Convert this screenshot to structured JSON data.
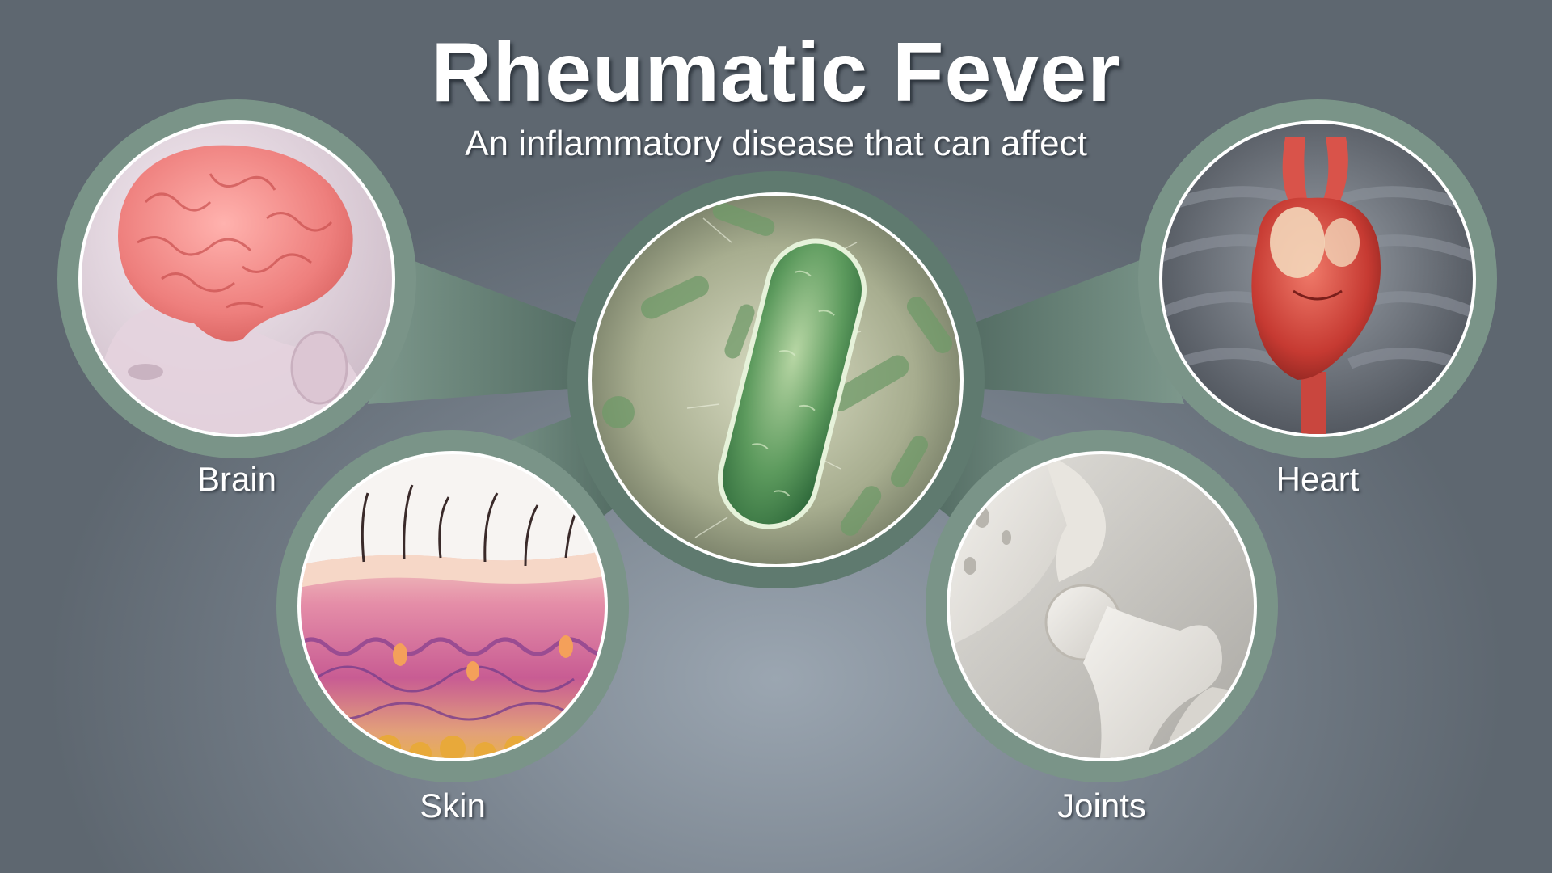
{
  "title": "Rheumatic Fever",
  "subtitle": "An inflammatory disease that can affect",
  "center": {
    "image": "bacteria-illustration"
  },
  "organs": [
    {
      "label": "Brain",
      "image": "brain-illustration"
    },
    {
      "label": "Skin",
      "image": "skin-layers-illustration"
    },
    {
      "label": "Heart",
      "image": "heart-illustration"
    },
    {
      "label": "Joints",
      "image": "hip-joint-illustration"
    }
  ],
  "colors": {
    "ring": "#7a9488",
    "connector": "#6d887c",
    "background": "#7b8590",
    "text": "#ffffff"
  }
}
